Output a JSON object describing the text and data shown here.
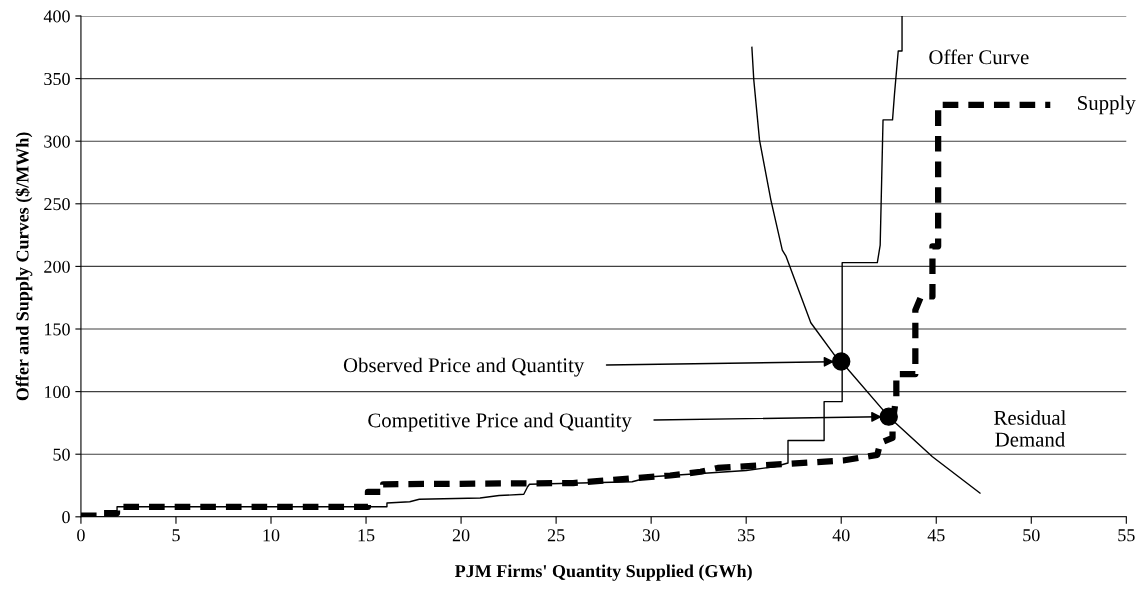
{
  "chart_data": {
    "type": "line",
    "xlabel": "PJM Firms' Quantity Supplied (GWh)",
    "ylabel": "Offer and Supply Curves ($/MWh)",
    "xlim": [
      0,
      55
    ],
    "xticks": [
      0,
      5,
      10,
      15,
      20,
      25,
      30,
      35,
      40,
      45,
      50,
      55
    ],
    "ylim": [
      0,
      400
    ],
    "yticks": [
      0,
      50,
      100,
      150,
      200,
      250,
      300,
      350,
      400
    ],
    "grid": "y",
    "legend": false,
    "series": [
      {
        "name": "Offer Curve",
        "color": "#000000",
        "line_style": "solid",
        "x": [
          0,
          1.9,
          1.9,
          16.1,
          16.1,
          17.3,
          17.8,
          21,
          22,
          23.3,
          23.5,
          23.6,
          29,
          30,
          35,
          36.5,
          37.2,
          37.2,
          39.1,
          39.1,
          40.05,
          40.05,
          41.9,
          42.05,
          42.2,
          42.7,
          42.8,
          43.0,
          43.2,
          43.2
        ],
        "values": [
          0,
          0,
          8,
          8,
          11,
          12,
          14,
          15,
          17,
          18,
          24,
          26,
          28,
          32,
          37,
          40,
          43,
          61,
          61,
          92,
          92,
          203,
          203,
          217,
          317,
          317,
          337,
          372,
          372,
          400
        ]
      },
      {
        "name": "Supply",
        "color": "#000000",
        "line_style": "dashed",
        "x": [
          0,
          1.2,
          1.2,
          1.9,
          1.9,
          15.1,
          15.1,
          15.9,
          15.9,
          25.9,
          31,
          32.6,
          33.5,
          40.1,
          41.9,
          42.05,
          42.7,
          42.7,
          42.9,
          42.9,
          43.9,
          43.9,
          44.2,
          44.8,
          44.8,
          45.1,
          45.1,
          51
        ],
        "values": [
          1,
          1,
          3,
          3,
          8,
          8,
          20,
          20,
          26,
          27,
          33,
          36,
          39,
          45,
          49.5,
          59,
          63,
          75,
          96,
          114,
          114,
          165,
          176,
          176,
          216,
          216,
          329,
          329
        ]
      },
      {
        "name": "Residual\nDemand",
        "color": "#000000",
        "line_style": "solid",
        "x": [
          35.3,
          35.4,
          35.7,
          36.3,
          36.9,
          37.1,
          38.4,
          39.9,
          40,
          42.5,
          44.8,
          47.3
        ],
        "values": [
          375,
          349,
          301,
          253,
          213,
          208,
          155,
          124,
          124,
          80,
          48,
          19
        ]
      },
      {
        "type": "scatter",
        "color": "#000000",
        "marker": "circle",
        "x": [
          40,
          42.5
        ],
        "values": [
          124,
          80
        ]
      }
    ],
    "annotations": [
      {
        "text": "Observed Price and Quantity",
        "x": 40,
        "y": 124
      },
      {
        "text": "Competitive Price and Quantity",
        "x": 42.5,
        "y": 80
      }
    ]
  }
}
